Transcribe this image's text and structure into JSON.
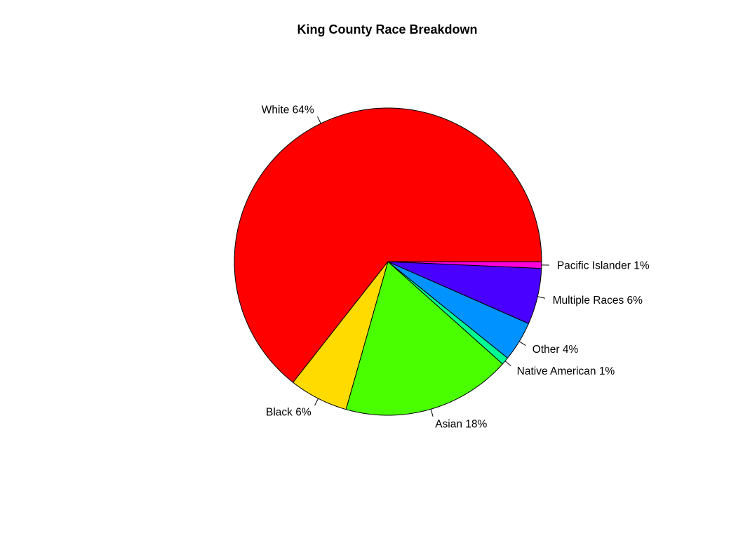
{
  "chart_data": {
    "type": "pie",
    "title": "King County Race Breakdown",
    "start_angle_deg": 0,
    "direction": "counterclockwise",
    "legend": "none",
    "slices": [
      {
        "category": "White",
        "value": 64.4,
        "label": "White 64%",
        "color": "#FF0000"
      },
      {
        "category": "Black",
        "value": 6.2,
        "label": "Black 6%",
        "color": "#FFDB00"
      },
      {
        "category": "Asian",
        "value": 17.8,
        "label": "Asian 18%",
        "color": "#49FF00"
      },
      {
        "category": "Native American",
        "value": 0.8,
        "label": "Native American 1%",
        "color": "#00FF92"
      },
      {
        "category": "Other",
        "value": 4.2,
        "label": "Other 4%",
        "color": "#0092FF"
      },
      {
        "category": "Multiple Races",
        "value": 5.9,
        "label": "Multiple Races 6%",
        "color": "#4900FF"
      },
      {
        "category": "Pacific Islander",
        "value": 0.7,
        "label": "Pacific Islander 1%",
        "color": "#FF00DB"
      }
    ]
  }
}
